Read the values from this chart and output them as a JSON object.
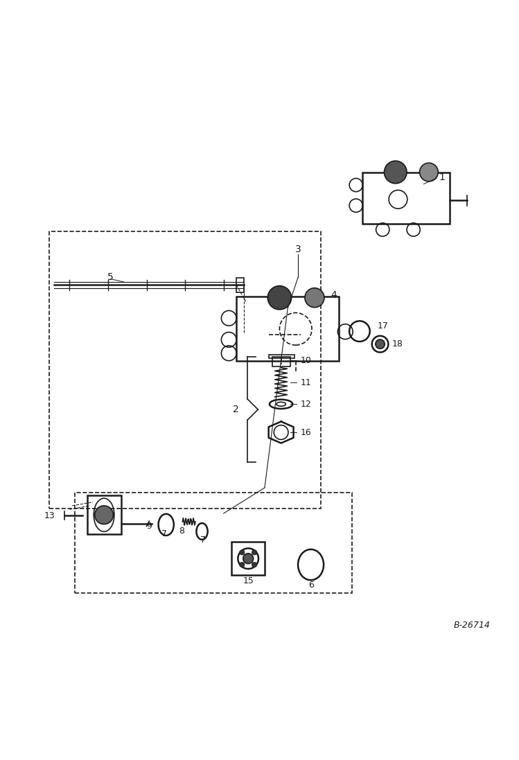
{
  "background_color": "#ffffff",
  "line_color": "#1a1a1a",
  "figsize": [
    7.49,
    10.97
  ],
  "dpi": 100,
  "watermark": "B-26714"
}
